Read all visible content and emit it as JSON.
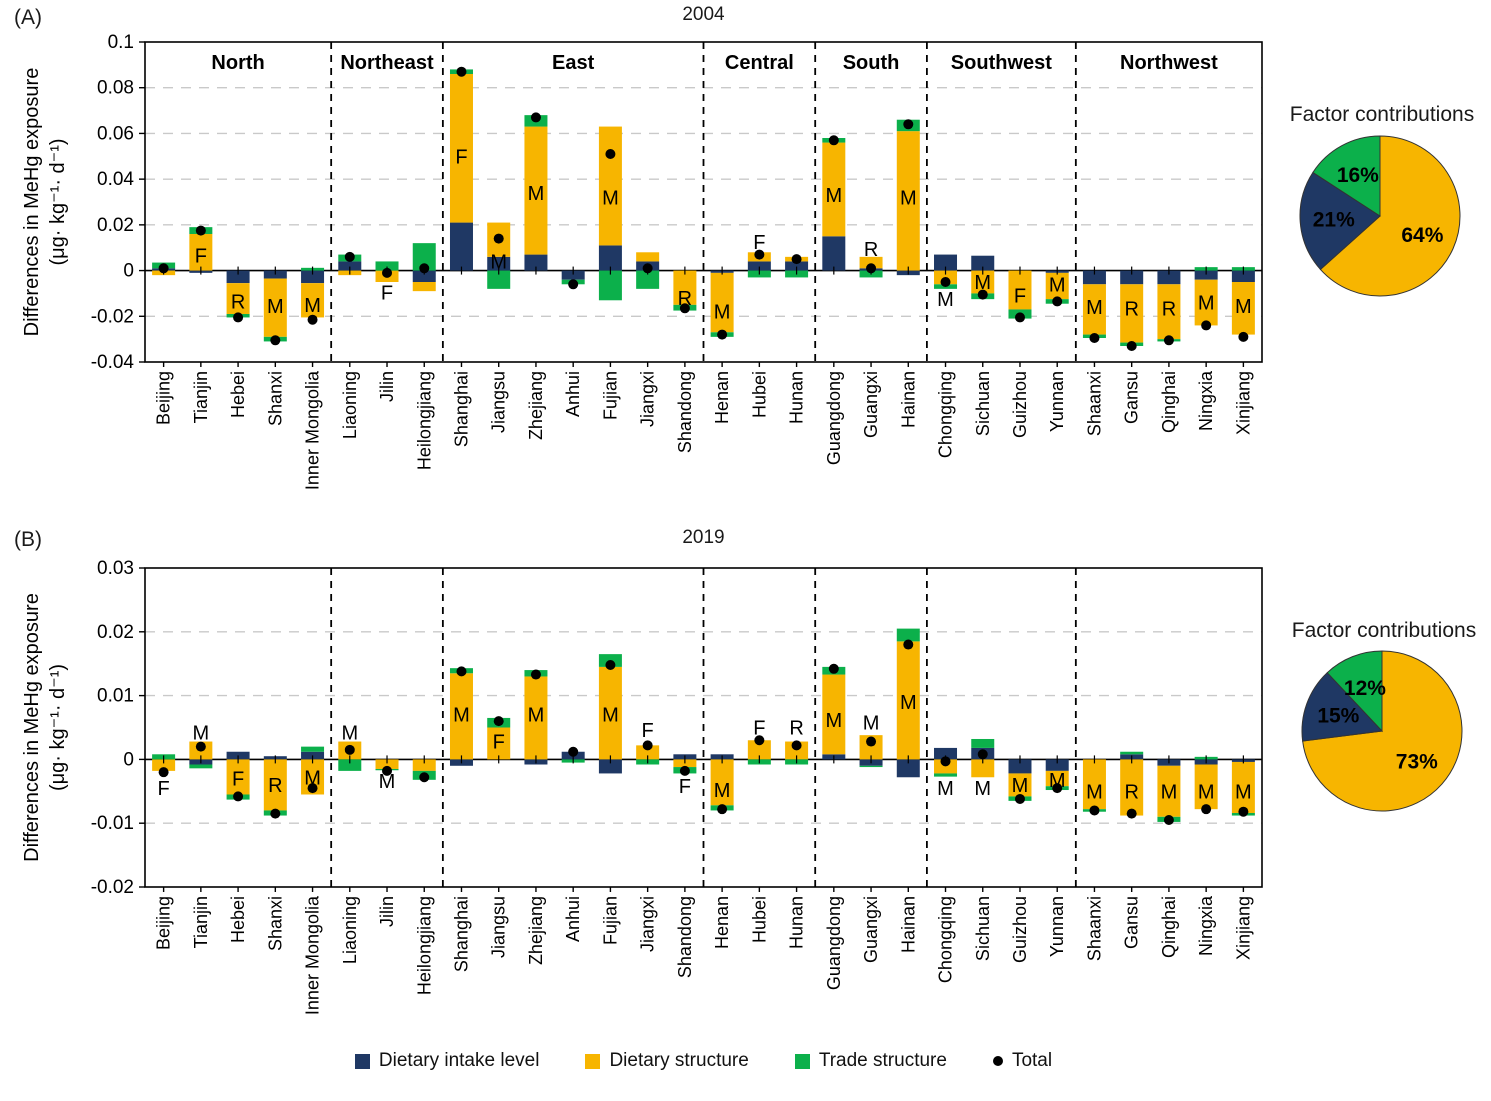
{
  "colors": {
    "intake": "#1f3864",
    "structure": "#f7b500",
    "trade": "#0cb04b",
    "total": "#000000",
    "grid": "#c9c9c9",
    "axis": "#000000"
  },
  "legend": [
    {
      "label": "Dietary intake level",
      "color_key": "intake",
      "marker": "square"
    },
    {
      "label": "Dietary structure",
      "color_key": "structure",
      "marker": "square"
    },
    {
      "label": "Trade structure",
      "color_key": "trade",
      "marker": "square"
    },
    {
      "label": "Total",
      "color_key": "total",
      "marker": "dot"
    }
  ],
  "chart_data": [
    {
      "id": "A",
      "panel_label": "(A)",
      "title": "2004",
      "type": "bar",
      "stacked": true,
      "grid": "dashed-horizontal",
      "ylabel_line1": "Differences in MeHg exposure",
      "ylabel_line2": "(μg· kg⁻¹· d⁻¹)",
      "ylim": [
        -0.04,
        0.1
      ],
      "yticks": [
        0.1,
        0.08,
        0.06,
        0.04,
        0.02,
        0,
        -0.02,
        -0.04
      ],
      "ytick_labels": [
        "0.1",
        "0.08",
        "0.06",
        "0.04",
        "0.02",
        "0",
        "-0.02",
        "-0.04"
      ],
      "categories": [
        "Beijing",
        "Tianjin",
        "Hebei",
        "Shanxi",
        "Inner Mongolia",
        "Liaoning",
        "Jilin",
        "Heilongjiang",
        "Shanghai",
        "Jiangsu",
        "Zhejiang",
        "Anhui",
        "Fujian",
        "Jiangxi",
        "Shandong",
        "Henan",
        "Hubei",
        "Hunan",
        "Guangdong",
        "Guangxi",
        "Hainan",
        "Chongqing",
        "Sichuan",
        "Guizhou",
        "Yunnan",
        "Shaanxi",
        "Gansu",
        "Qinghai",
        "Ningxia",
        "Xinjiang"
      ],
      "regions": [
        {
          "name": "North",
          "span": 5
        },
        {
          "name": "Northeast",
          "span": 3
        },
        {
          "name": "East",
          "span": 7
        },
        {
          "name": "Central",
          "span": 3
        },
        {
          "name": "South",
          "span": 3
        },
        {
          "name": "Southwest",
          "span": 4
        },
        {
          "name": "Northwest",
          "span": 5
        }
      ],
      "show_region_labels": true,
      "series": [
        {
          "name": "Dietary intake level",
          "color_key": "intake",
          "values": [
            0.001,
            -0.001,
            -0.0055,
            -0.0035,
            -0.0055,
            0.004,
            0,
            -0.005,
            0.021,
            0.006,
            0.007,
            -0.004,
            0.011,
            0.004,
            0,
            -0.001,
            0.004,
            0.004,
            0.015,
            0.001,
            -0.002,
            0.007,
            0.0065,
            0,
            -0.001,
            -0.006,
            -0.006,
            -0.006,
            -0.004,
            -0.005
          ]
        },
        {
          "name": "Dietary structure",
          "color_key": "structure",
          "values": [
            -0.002,
            0.016,
            -0.0135,
            -0.0255,
            -0.015,
            -0.002,
            -0.005,
            -0.004,
            0.065,
            0.015,
            0.056,
            0,
            0.052,
            0.004,
            -0.015,
            -0.026,
            0.004,
            0.002,
            0.041,
            0.005,
            0.061,
            -0.006,
            -0.01,
            -0.017,
            -0.0115,
            -0.022,
            -0.0255,
            -0.024,
            -0.02,
            -0.023
          ]
        },
        {
          "name": "Trade structure",
          "color_key": "trade",
          "values": [
            0.0025,
            0.003,
            -0.0015,
            -0.002,
            0.0012,
            0.003,
            0.004,
            0.012,
            0.002,
            -0.008,
            0.005,
            -0.002,
            -0.013,
            -0.008,
            -0.0025,
            -0.002,
            -0.003,
            -0.003,
            0.002,
            -0.003,
            0.005,
            -0.002,
            -0.0025,
            -0.004,
            -0.002,
            -0.0015,
            -0.0015,
            -0.001,
            0.0015,
            0.0015
          ]
        }
      ],
      "totals": [
        0.001,
        0.0175,
        -0.0205,
        -0.0305,
        -0.0215,
        0.006,
        -0.001,
        0.001,
        0.087,
        0.014,
        0.067,
        -0.006,
        0.051,
        0.001,
        -0.0165,
        -0.028,
        0.007,
        0.005,
        0.057,
        0.001,
        0.064,
        -0.005,
        -0.0105,
        -0.0205,
        -0.0135,
        -0.0295,
        -0.033,
        -0.0305,
        -0.024,
        -0.029
      ],
      "bar_letters": [
        {
          "i": 1,
          "t": "F",
          "y": 0.0067
        },
        {
          "i": 2,
          "t": "R",
          "y": -0.0135
        },
        {
          "i": 3,
          "t": "M",
          "y": -0.0155
        },
        {
          "i": 4,
          "t": "M",
          "y": -0.015
        },
        {
          "i": 6,
          "t": "F",
          "y": -0.0095
        },
        {
          "i": 8,
          "t": "F",
          "y": 0.05
        },
        {
          "i": 9,
          "t": "M",
          "y": 0.004
        },
        {
          "i": 10,
          "t": "M",
          "y": 0.034
        },
        {
          "i": 12,
          "t": "M",
          "y": 0.032
        },
        {
          "i": 14,
          "t": "R",
          "y": -0.012
        },
        {
          "i": 15,
          "t": "M",
          "y": -0.018
        },
        {
          "i": 16,
          "t": "F",
          "y": 0.0125
        },
        {
          "i": 18,
          "t": "M",
          "y": 0.033
        },
        {
          "i": 19,
          "t": "R",
          "y": 0.0095
        },
        {
          "i": 20,
          "t": "M",
          "y": 0.032
        },
        {
          "i": 21,
          "t": "M",
          "y": -0.0125
        },
        {
          "i": 22,
          "t": "M",
          "y": -0.005
        },
        {
          "i": 23,
          "t": "F",
          "y": -0.011
        },
        {
          "i": 24,
          "t": "M",
          "y": -0.006
        },
        {
          "i": 25,
          "t": "M",
          "y": -0.016
        },
        {
          "i": 26,
          "t": "R",
          "y": -0.0165
        },
        {
          "i": 27,
          "t": "R",
          "y": -0.0165
        },
        {
          "i": 28,
          "t": "M",
          "y": -0.014
        },
        {
          "i": 29,
          "t": "M",
          "y": -0.0155
        }
      ],
      "pie": {
        "title": "Factor contributions",
        "start": "top",
        "direction": "clockwise",
        "slices": [
          {
            "label": "Dietary structure",
            "pct": 64,
            "color_key": "structure",
            "text": "64%"
          },
          {
            "label": "Dietary intake level",
            "pct": 21,
            "color_key": "intake",
            "text": "21%"
          },
          {
            "label": "Trade structure",
            "pct": 16,
            "color_key": "trade",
            "text": "16%"
          }
        ]
      }
    },
    {
      "id": "B",
      "panel_label": "(B)",
      "title": "2019",
      "type": "bar",
      "stacked": true,
      "grid": "dashed-horizontal",
      "ylabel_line1": "Differences in MeHg exposure",
      "ylabel_line2": "(μg· kg⁻¹· d⁻¹)",
      "ylim": [
        -0.02,
        0.03
      ],
      "yticks": [
        0.03,
        0.02,
        0.01,
        0,
        -0.01,
        -0.02
      ],
      "ytick_labels": [
        "0.03",
        "0.02",
        "0.01",
        "0",
        "-0.01",
        "-0.02"
      ],
      "categories": [
        "Beijing",
        "Tianjin",
        "Hebei",
        "Shanxi",
        "Inner Mongolia",
        "Liaoning",
        "Jilin",
        "Heilongjiang",
        "Shanghai",
        "Jiangsu",
        "Zhejiang",
        "Anhui",
        "Fujian",
        "Jiangxi",
        "Shandong",
        "Henan",
        "Hubei",
        "Hunan",
        "Guangdong",
        "Guangxi",
        "Hainan",
        "Chongqing",
        "Sichuan",
        "Guizhou",
        "Yunnan",
        "Shaanxi",
        "Gansu",
        "Qinghai",
        "Ningxia",
        "Xinjiang"
      ],
      "regions": [
        {
          "name": "North",
          "span": 5
        },
        {
          "name": "Northeast",
          "span": 3
        },
        {
          "name": "East",
          "span": 7
        },
        {
          "name": "Central",
          "span": 3
        },
        {
          "name": "South",
          "span": 3
        },
        {
          "name": "Southwest",
          "span": 4
        },
        {
          "name": "Northwest",
          "span": 5
        }
      ],
      "show_region_labels": false,
      "series": [
        {
          "name": "Dietary intake level",
          "color_key": "intake",
          "values": [
            0,
            -0.0008,
            0.0012,
            0.0005,
            0.0012,
            0,
            0,
            0,
            -0.001,
            0,
            -0.0008,
            0.0012,
            -0.0022,
            0,
            0.0008,
            0.0008,
            0,
            0,
            0.0008,
            -0.001,
            -0.0028,
            0.0018,
            0.0018,
            -0.0022,
            -0.0018,
            0,
            0.0008,
            -0.001,
            -0.0008,
            -0.0004
          ]
        },
        {
          "name": "Dietary structure",
          "color_key": "structure",
          "values": [
            -0.0018,
            0.0028,
            -0.0055,
            -0.008,
            -0.0055,
            0.0028,
            -0.0015,
            -0.0018,
            0.0135,
            0.005,
            0.013,
            0,
            0.0145,
            0.0022,
            -0.0012,
            -0.0072,
            0.003,
            0.0028,
            0.0125,
            0.0038,
            0.0185,
            -0.0022,
            -0.0028,
            -0.0036,
            -0.0024,
            -0.0078,
            -0.0088,
            -0.008,
            -0.007,
            -0.008
          ]
        },
        {
          "name": "Trade structure",
          "color_key": "trade",
          "values": [
            0.0008,
            -0.0006,
            -0.0008,
            -0.0008,
            0.0008,
            -0.0018,
            -0.0002,
            -0.0014,
            0.0008,
            0.0015,
            0.001,
            -0.0005,
            0.002,
            -0.0008,
            -0.001,
            -0.0008,
            -0.0008,
            -0.0008,
            0.0012,
            -0.0002,
            0.002,
            -0.0005,
            0.0014,
            -0.0007,
            -0.0006,
            -0.0004,
            0.0004,
            -0.0008,
            0.0004,
            -0.0004
          ]
        }
      ],
      "totals": [
        -0.002,
        0.002,
        -0.0058,
        -0.0085,
        -0.0045,
        0.0015,
        -0.0018,
        -0.0028,
        0.0138,
        0.006,
        0.0133,
        0.0012,
        0.0148,
        0.0022,
        -0.0018,
        -0.0078,
        0.003,
        0.0022,
        0.0142,
        0.0028,
        0.018,
        -0.0003,
        0.0008,
        -0.0062,
        -0.0045,
        -0.008,
        -0.0085,
        -0.0095,
        -0.0078,
        -0.0082
      ],
      "bar_letters": [
        {
          "i": 0,
          "t": "F",
          "y": -0.0045
        },
        {
          "i": 1,
          "t": "M",
          "y": 0.0042
        },
        {
          "i": 2,
          "t": "F",
          "y": -0.003
        },
        {
          "i": 3,
          "t": "R",
          "y": -0.004
        },
        {
          "i": 4,
          "t": "M",
          "y": -0.0028
        },
        {
          "i": 5,
          "t": "M",
          "y": 0.0042
        },
        {
          "i": 6,
          "t": "M",
          "y": -0.0034
        },
        {
          "i": 8,
          "t": "M",
          "y": 0.007
        },
        {
          "i": 9,
          "t": "F",
          "y": 0.0028
        },
        {
          "i": 10,
          "t": "M",
          "y": 0.007
        },
        {
          "i": 12,
          "t": "M",
          "y": 0.007
        },
        {
          "i": 13,
          "t": "F",
          "y": 0.0046
        },
        {
          "i": 14,
          "t": "F",
          "y": -0.0042
        },
        {
          "i": 15,
          "t": "M",
          "y": -0.0048
        },
        {
          "i": 16,
          "t": "F",
          "y": 0.005
        },
        {
          "i": 17,
          "t": "R",
          "y": 0.005
        },
        {
          "i": 18,
          "t": "M",
          "y": 0.0062
        },
        {
          "i": 19,
          "t": "M",
          "y": 0.0058
        },
        {
          "i": 20,
          "t": "M",
          "y": 0.009
        },
        {
          "i": 21,
          "t": "M",
          "y": -0.0045
        },
        {
          "i": 22,
          "t": "M",
          "y": -0.0045
        },
        {
          "i": 23,
          "t": "M",
          "y": -0.004
        },
        {
          "i": 24,
          "t": "M",
          "y": -0.0032
        },
        {
          "i": 25,
          "t": "M",
          "y": -0.005
        },
        {
          "i": 26,
          "t": "R",
          "y": -0.005
        },
        {
          "i": 27,
          "t": "M",
          "y": -0.005
        },
        {
          "i": 28,
          "t": "M",
          "y": -0.005
        },
        {
          "i": 29,
          "t": "M",
          "y": -0.005
        }
      ],
      "pie": {
        "title": "Factor contributions",
        "start": "top",
        "direction": "clockwise",
        "slices": [
          {
            "label": "Dietary structure",
            "pct": 73,
            "color_key": "structure",
            "text": "73%"
          },
          {
            "label": "Dietary intake level",
            "pct": 15,
            "color_key": "intake",
            "text": "15%"
          },
          {
            "label": "Trade structure",
            "pct": 12,
            "color_key": "trade",
            "text": "12%"
          }
        ]
      }
    }
  ]
}
